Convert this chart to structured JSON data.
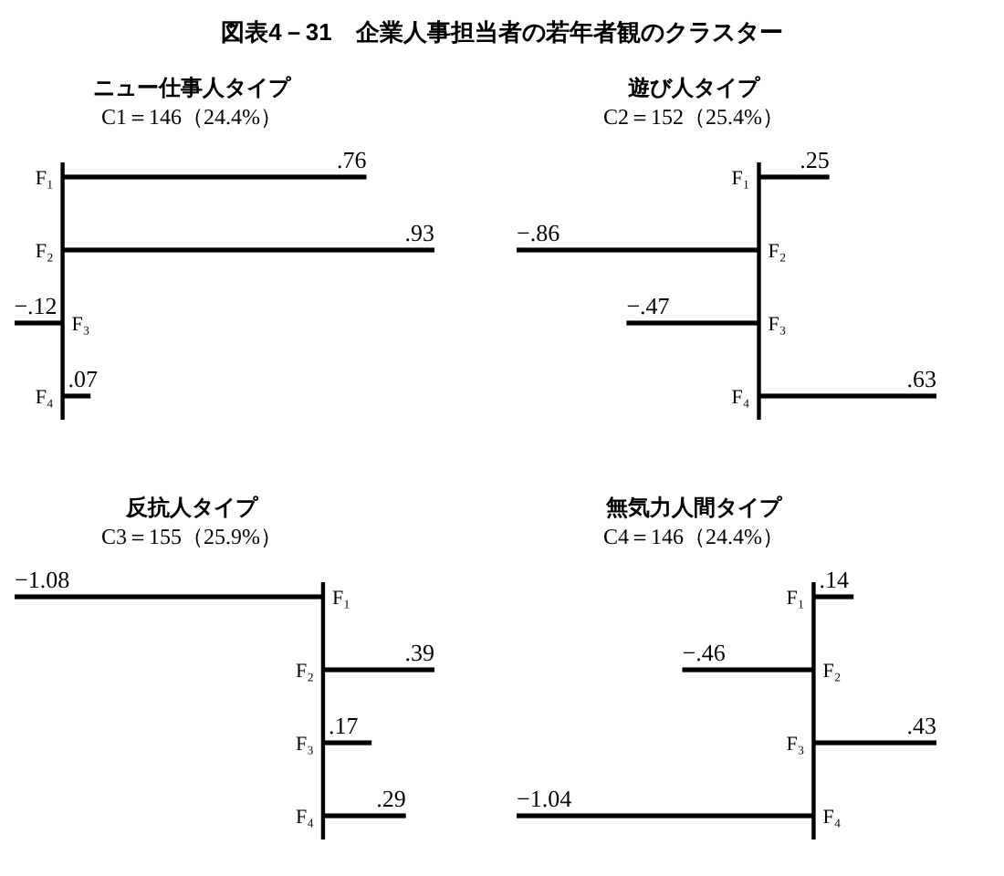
{
  "chart_data": [
    {
      "type": "bar",
      "orientation": "horizontal",
      "title": "ニュー仕事人タイプ",
      "subtitle": "C1＝146（24.4%）",
      "annotations": [
        "図表4－31　企業人事担当者の若年者観のクラスター"
      ],
      "categories": [
        "F₁",
        "F₂",
        "F₃",
        "F₄"
      ],
      "values": [
        0.76,
        0.93,
        -0.12,
        0.07
      ],
      "value_labels": [
        ".76",
        ".93",
        "−.12",
        ".07"
      ],
      "color": "#000000",
      "tick_labels": "y"
    },
    {
      "type": "bar",
      "orientation": "horizontal",
      "title": "遊び人タイプ",
      "subtitle": "C2＝152（25.4%）",
      "categories": [
        "F₁",
        "F₂",
        "F₃",
        "F₄"
      ],
      "values": [
        0.25,
        -0.86,
        -0.47,
        0.63
      ],
      "value_labels": [
        ".25",
        "−.86",
        "−.47",
        ".63"
      ],
      "color": "#000000",
      "tick_labels": "y"
    },
    {
      "type": "bar",
      "orientation": "horizontal",
      "title": "反抗人タイプ",
      "subtitle": "C3＝155（25.9%）",
      "categories": [
        "F₁",
        "F₂",
        "F₃",
        "F₄"
      ],
      "values": [
        -1.08,
        0.39,
        0.17,
        0.29
      ],
      "value_labels": [
        "−1.08",
        ".39",
        ".17",
        ".29"
      ],
      "color": "#000000",
      "tick_labels": "y"
    },
    {
      "type": "bar",
      "orientation": "horizontal",
      "title": "無気力人間タイプ",
      "subtitle": "C4＝146（24.4%）",
      "categories": [
        "F₁",
        "F₂",
        "F₃",
        "F₄"
      ],
      "values": [
        0.14,
        -0.46,
        0.43,
        -1.04
      ],
      "value_labels": [
        ".14",
        "−.46",
        ".43",
        "−1.04"
      ],
      "color": "#000000",
      "tick_labels": "y"
    }
  ]
}
